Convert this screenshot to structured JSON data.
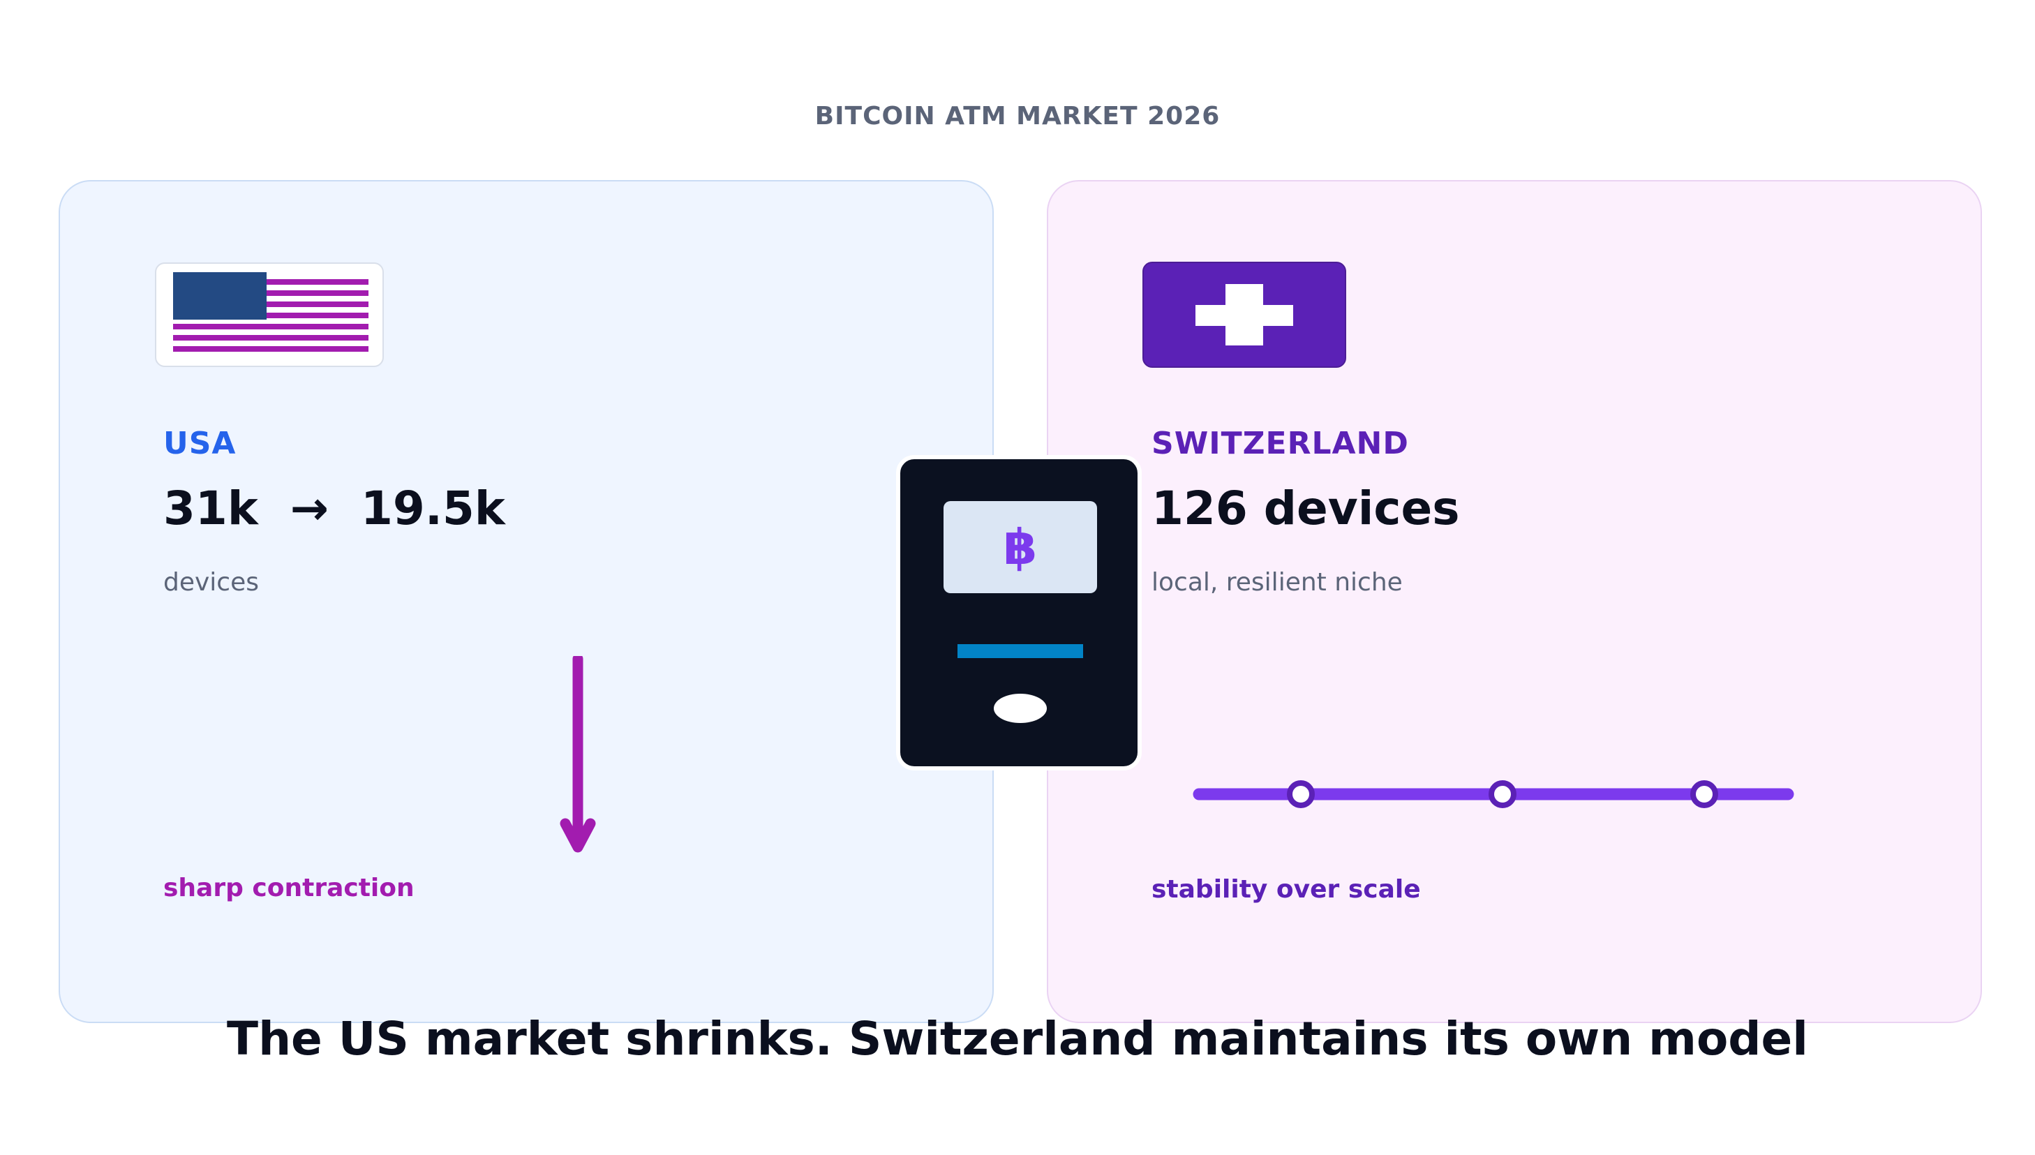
{
  "header": {
    "kicker": "BITCOIN ATM MARKET 2026"
  },
  "usa": {
    "name": "USA",
    "from": "31k",
    "arrow": "→",
    "to": "19.5k",
    "unit": "devices",
    "tagline": "sharp contraction",
    "flag_icon": "us-flag-icon",
    "trend_icon": "down-arrow-icon",
    "accent_color": "#2563eb",
    "tag_color": "#a21caf"
  },
  "switzerland": {
    "name": "SWITZERLAND",
    "count": "126 devices",
    "description": "local, resilient niche",
    "tagline": "stability over scale",
    "flag_icon": "swiss-flag-icon",
    "trend_icon": "flat-line-icon",
    "accent_color": "#5b21b6"
  },
  "atm": {
    "icon": "bitcoin-atm-icon",
    "glyph": "฿",
    "glyph_color": "#7c3aed"
  },
  "footer": {
    "headline": "The US market shrinks. Switzerland maintains its own model"
  }
}
